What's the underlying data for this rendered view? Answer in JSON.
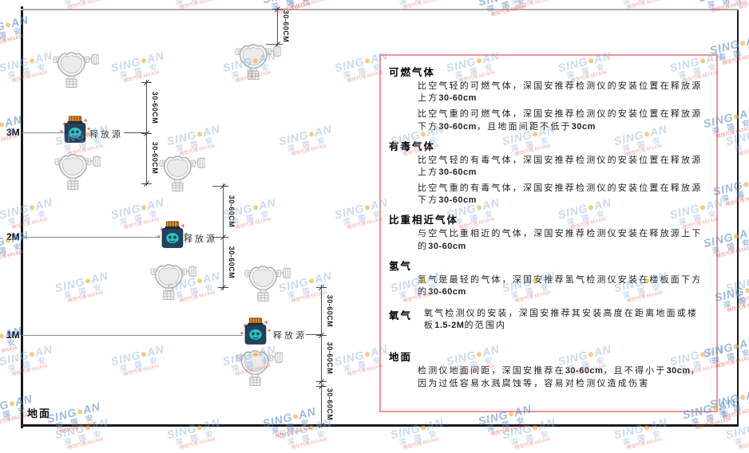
{
  "watermark": {
    "brand_left": "SING",
    "brand_right": "AN",
    "cjk": "深 国 安",
    "agent_text": "微信代理 661434"
  },
  "diagram": {
    "dim_label": "30-60CM",
    "release_source_label": "释放源",
    "ground_label": "地面",
    "levels": [
      {
        "label": "3M"
      },
      {
        "label": "2M"
      },
      {
        "label": "1M"
      }
    ]
  },
  "panel": {
    "sections": [
      {
        "heading": "可燃气体",
        "inline": false,
        "paragraphs": [
          [
            {
              "t": "比空气轻的可燃气体，深国安推荐检测仪的安装位置在释放源上方",
              "b": false
            },
            {
              "t": "30-60cm",
              "b": true
            }
          ],
          [
            {
              "t": "比空气重的可燃气体，深国安推荐检测仪的安装位置在释放源下方",
              "b": false
            },
            {
              "t": "30-60cm",
              "b": true
            },
            {
              "t": "，且地面间距不低于",
              "b": false
            },
            {
              "t": "30cm",
              "b": true
            }
          ]
        ]
      },
      {
        "heading": "有毒气体",
        "inline": false,
        "paragraphs": [
          [
            {
              "t": "比空气轻的有毒气体，深国安推荐检测仪的安装位置在释放源上方",
              "b": false
            },
            {
              "t": "30-60cm",
              "b": true
            }
          ],
          [
            {
              "t": "比空气重的有毒气体，深国安推荐检测仪的安装位置在释放源下方",
              "b": false
            },
            {
              "t": "30-60cm",
              "b": true
            }
          ]
        ]
      },
      {
        "heading": "比重相近气体",
        "inline": false,
        "paragraphs": [
          [
            {
              "t": "与空气比重相近的气体，深国安推荐检测仪安装在释放源上下的",
              "b": false
            },
            {
              "t": "30-60cm",
              "b": true
            }
          ]
        ]
      },
      {
        "heading": "氢气",
        "inline": false,
        "paragraphs": [
          [
            {
              "t": "氢气是最轻的气体，深国安推荐氢气检测仪安装在楼板面下方的",
              "b": false
            },
            {
              "t": "30-60cm",
              "b": true
            }
          ]
        ]
      },
      {
        "heading": "氧气",
        "inline": true,
        "paragraphs": [
          [
            {
              "t": "氧气检测仪的安装，深国安推荐其安装高度在距离地面或楼板",
              "b": false
            },
            {
              "t": "1.5-2M",
              "b": true
            },
            {
              "t": "的范围内",
              "b": false
            }
          ]
        ]
      },
      {
        "heading": "地面",
        "inline": false,
        "gap": true,
        "paragraphs": [
          [
            {
              "t": "检测仪地面间距，深国安推荐在",
              "b": false
            },
            {
              "t": "30-60cm",
              "b": true
            },
            {
              "t": "，且不得小于",
              "b": false
            },
            {
              "t": "30cm",
              "b": true
            },
            {
              "t": "，因为过低容易水溅腐蚀等，容易对检测仪造成伤害",
              "b": false
            }
          ]
        ]
      }
    ]
  }
}
